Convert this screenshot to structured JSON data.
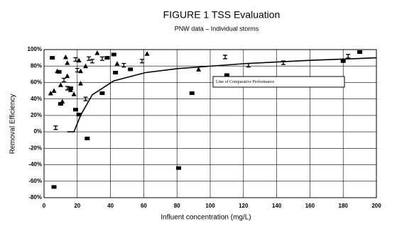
{
  "chart_data": {
    "type": "scatter",
    "title": "FIGURE 1 TSS Evaluation",
    "subtitle": "PNW data – Individual storms",
    "x_label": "Influent concentration (mg/L)",
    "y_label": "Removal Efficiency",
    "annotation": "Line of Comparative Performance",
    "xlim": [
      0,
      200
    ],
    "ylim": [
      -80,
      100
    ],
    "xticks": [
      0,
      20,
      40,
      60,
      80,
      100,
      120,
      140,
      160,
      180,
      200
    ],
    "yticks": [
      {
        "value": -80,
        "label": "-80%"
      },
      {
        "value": -60,
        "label": "-60%"
      },
      {
        "value": -40,
        "label": "-40%"
      },
      {
        "value": -20,
        "label": "-20%"
      },
      {
        "value": 0,
        "label": "0%"
      },
      {
        "value": 20,
        "label": "20%"
      },
      {
        "value": 40,
        "label": "40%"
      },
      {
        "value": 60,
        "label": "60%"
      },
      {
        "value": 80,
        "label": "80%"
      },
      {
        "value": 100,
        "label": "100%"
      }
    ],
    "grid": true,
    "series": [
      {
        "marker": "triangle",
        "color": "#000000",
        "x": [
          4,
          6,
          8,
          10,
          11,
          13,
          14,
          16,
          18,
          21,
          22,
          25,
          32,
          44,
          62,
          93,
          22,
          14
        ],
        "values": [
          47,
          50,
          74,
          57,
          37,
          91,
          68,
          51,
          46,
          87,
          59,
          80,
          96,
          83,
          95,
          76,
          74,
          84
        ]
      },
      {
        "marker": "square",
        "color": "#000000",
        "x": [
          5,
          6,
          9,
          10,
          16,
          19,
          21,
          26,
          35,
          38,
          42,
          43,
          52,
          81,
          89,
          110,
          180,
          190
        ],
        "values": [
          90,
          -67,
          73,
          34,
          53,
          27,
          21,
          -8,
          47,
          90,
          94,
          72,
          76,
          -44,
          47,
          69,
          86,
          97
        ]
      },
      {
        "marker": "ibeam",
        "color": "#000000",
        "x": [
          7,
          12,
          14,
          19,
          25,
          27,
          29,
          48,
          59,
          109,
          123,
          144,
          183,
          20,
          35
        ],
        "values": [
          5,
          63,
          53,
          88,
          40,
          89,
          86,
          81,
          86,
          91,
          81,
          84,
          92,
          75,
          89
        ]
      },
      {
        "marker": "line",
        "color": "#000000",
        "x": [
          14,
          18,
          22,
          29,
          42,
          61,
          81,
          121,
          161,
          200
        ],
        "values": [
          0,
          0,
          20,
          45,
          62,
          72,
          77,
          83,
          87,
          90
        ]
      }
    ]
  }
}
